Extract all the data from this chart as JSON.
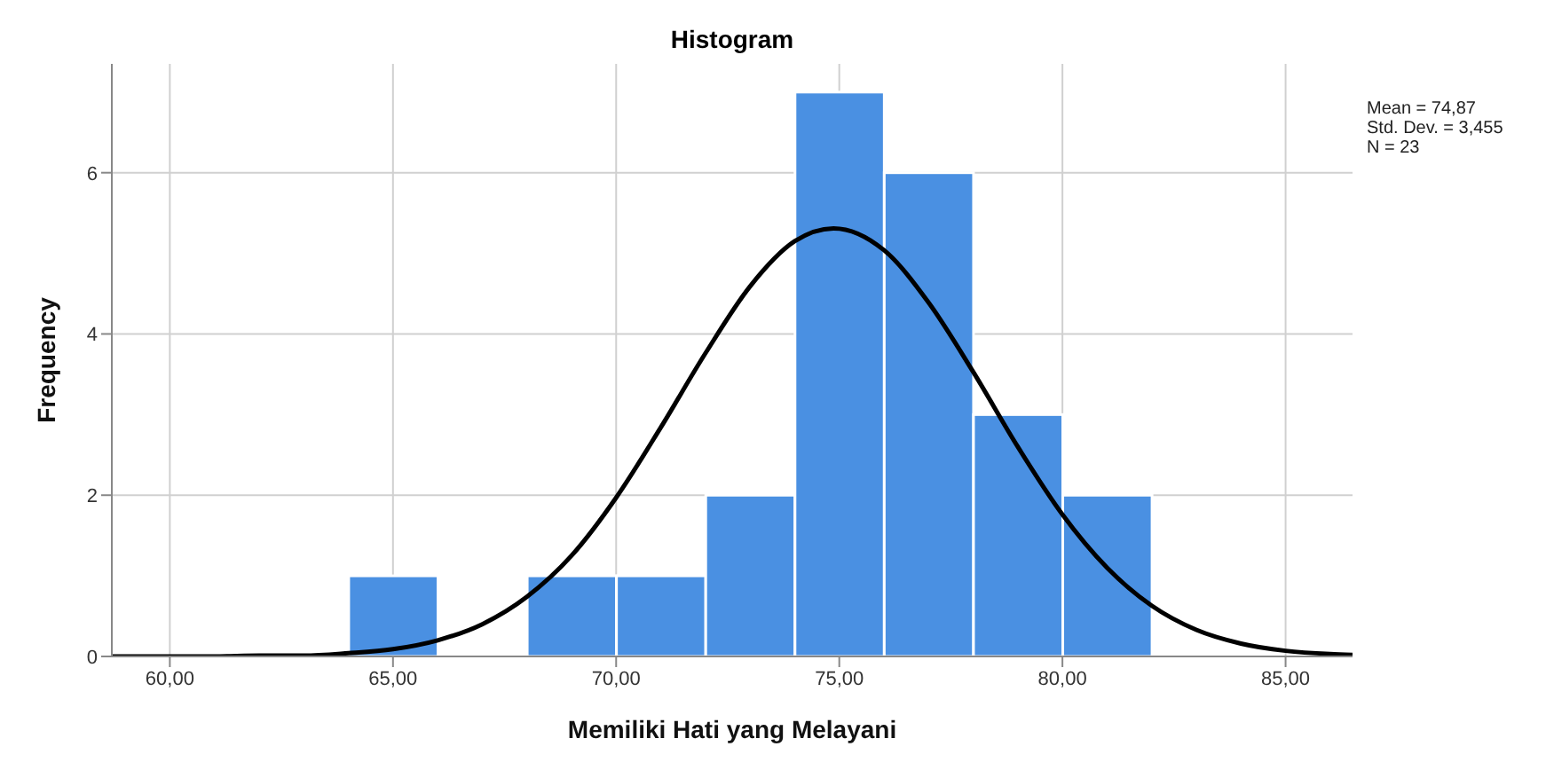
{
  "chart_data": {
    "type": "histogram",
    "title": "Histogram",
    "xlabel": "Memiliki Hati yang Melayani",
    "ylabel": "Frequency",
    "bins": [
      64,
      66,
      68,
      70,
      72,
      74,
      76,
      78,
      80,
      82
    ],
    "values": [
      1,
      0,
      1,
      1,
      2,
      7,
      6,
      3,
      2
    ],
    "color": "#4a90e2",
    "series": [
      {
        "type": "line",
        "color": "#000000",
        "x": [
          58.7,
          60,
          61,
          62,
          63,
          64,
          65,
          66,
          67,
          68,
          69,
          70,
          71,
          72,
          73,
          74,
          74.87,
          76,
          77,
          78,
          79,
          80,
          81,
          82,
          83,
          84,
          85,
          86,
          86.5
        ],
        "values": [
          0,
          0,
          0,
          0.01,
          0.01,
          0.04,
          0.09,
          0.2,
          0.4,
          0.74,
          1.25,
          1.97,
          2.84,
          3.76,
          4.59,
          5.15,
          5.31,
          5.04,
          4.39,
          3.53,
          2.6,
          1.76,
          1.1,
          0.63,
          0.33,
          0.16,
          0.07,
          0.03,
          0.02
        ]
      }
    ],
    "xlim": [
      58.7,
      86.5
    ],
    "xticks": [
      {
        "value": 60,
        "label": "60,00"
      },
      {
        "value": 65,
        "label": "65,00"
      },
      {
        "value": 70,
        "label": "70,00"
      },
      {
        "value": 75,
        "label": "75,00"
      },
      {
        "value": 80,
        "label": "80,00"
      },
      {
        "value": 85,
        "label": "85,00"
      }
    ],
    "ylim": [
      0,
      7.35
    ],
    "yticks": [
      0,
      2,
      4,
      6
    ],
    "grid": true,
    "annotations": [
      "Mean = 74,87",
      "Std. Dev. = 3,455",
      "N = 23"
    ]
  }
}
